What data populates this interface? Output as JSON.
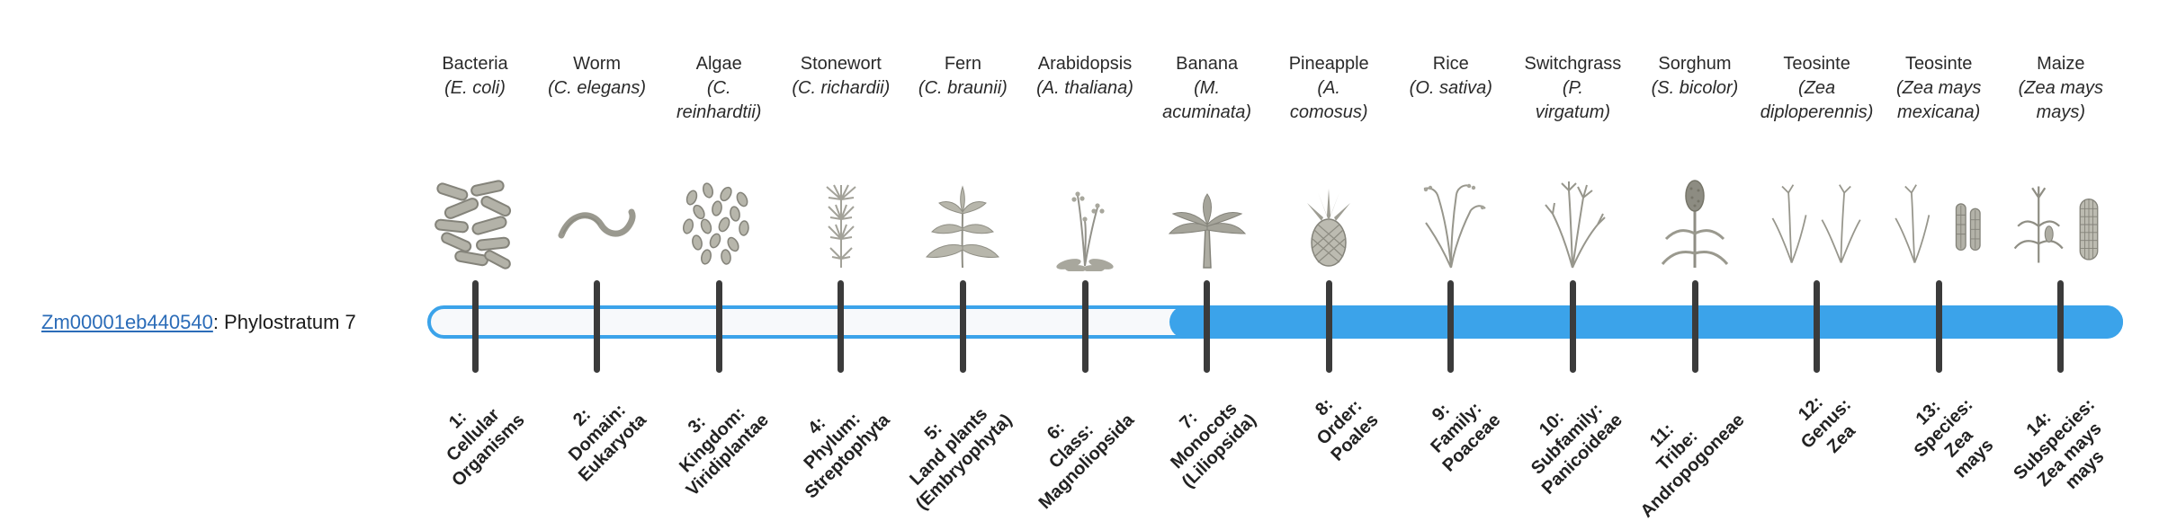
{
  "gene": {
    "id": "Zm00001eb440540",
    "suffix": ": Phylostratum 7",
    "link_color": "#2b6cb8"
  },
  "bar": {
    "color": "#3ba3ea",
    "track_color": "#f7f9fb",
    "tick_color": "#3b3b3b",
    "filled_from_stratum": 7
  },
  "strata": [
    {
      "index": 1,
      "organism": "Bacteria",
      "sci": "(E. coli)",
      "icon": "bacteria-icon",
      "level": "1:\nCellular\nOrganisms"
    },
    {
      "index": 2,
      "organism": "Worm",
      "sci": "(C. elegans)",
      "icon": "worm-icon",
      "level": "2:\nDomain:\nEukaryota"
    },
    {
      "index": 3,
      "organism": "Algae",
      "sci": "(C.\nreinhardtii)",
      "icon": "algae-icon",
      "level": "3:\nKingdom:\nViridiplantae"
    },
    {
      "index": 4,
      "organism": "Stonewort",
      "sci": "(C. richardii)",
      "icon": "stonewort-icon",
      "level": "4:\nPhylum:\nStreptophyta"
    },
    {
      "index": 5,
      "organism": "Fern",
      "sci": "(C. braunii)",
      "icon": "fern-icon",
      "level": "5:\nLand plants\n(Embryophyta)"
    },
    {
      "index": 6,
      "organism": "Arabidopsis",
      "sci": "(A. thaliana)",
      "icon": "arabidopsis-icon",
      "level": "6:\nClass:\nMagnoliopsida"
    },
    {
      "index": 7,
      "organism": "Banana",
      "sci": "(M.\nacuminata)",
      "icon": "banana-icon",
      "level": "7:\nMonocots\n(Liliopsida)"
    },
    {
      "index": 8,
      "organism": "Pineapple",
      "sci": "(A.\ncomosus)",
      "icon": "pineapple-icon",
      "level": "8:\nOrder:\nPoales"
    },
    {
      "index": 9,
      "organism": "Rice",
      "sci": "(O. sativa)",
      "icon": "rice-icon",
      "level": "9:\nFamily:\nPoaceae"
    },
    {
      "index": 10,
      "organism": "Switchgrass",
      "sci": "(P.\nvirgatum)",
      "icon": "switchgrass-icon",
      "level": "10:\nSubfamily:\nPanicoideae"
    },
    {
      "index": 11,
      "organism": "Sorghum",
      "sci": "(S. bicolor)",
      "icon": "sorghum-icon",
      "level": "11:\nTribe:\nAndropogoneae"
    },
    {
      "index": 12,
      "organism": "Teosinte",
      "sci": "(Zea\ndiploperennis)",
      "icon": "teosinte-diploperennis-icon",
      "level": "12:\nGenus:\nZea"
    },
    {
      "index": 13,
      "organism": "Teosinte",
      "sci": "(Zea mays\nmexicana)",
      "icon": "teosinte-mexicana-icon",
      "level": "13:\nSpecies:\nZea\nmays"
    },
    {
      "index": 14,
      "organism": "Maize",
      "sci": "(Zea mays\nmays)",
      "icon": "maize-icon",
      "level": "14:\nSubspecies:\nZea mays\nmays"
    }
  ]
}
